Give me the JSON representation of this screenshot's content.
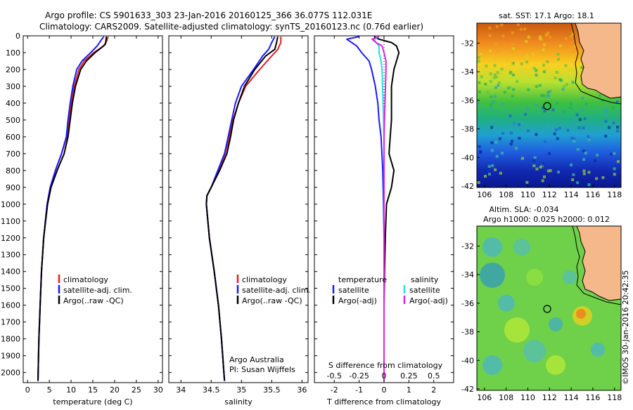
{
  "header": {
    "line1": "Argo profile: CS 5901633_303 23-Jan-2016 20160125_366 36.077S 112.031E",
    "line2": "Climatology: CARS2009. Satellite-adjusted climatology: synTS_20160123.nc (0.76d earlier)"
  },
  "colors": {
    "climatology": "#e02020",
    "satellite": "#1a1aff",
    "argo": "#000000",
    "sal_satellite": "#22e0e0",
    "sal_argo": "#e020e0",
    "land": "#f5b88a"
  },
  "depth_ticks": [
    "0",
    "100",
    "200",
    "300",
    "400",
    "500",
    "600",
    "700",
    "800",
    "900",
    "1000",
    "1100",
    "1200",
    "1300",
    "1400",
    "1500",
    "1600",
    "1700",
    "1800",
    "1900",
    "2000"
  ],
  "temperature_panel": {
    "xlabel": "temperature (deg C)",
    "xticks": [
      "0",
      "5",
      "10",
      "15",
      "20",
      "25",
      "30"
    ],
    "legend": [
      "climatology",
      "satellite-adj. clim.",
      "Argo(..raw -QC)"
    ]
  },
  "salinity_panel": {
    "xlabel": "salinity",
    "xticks": [
      "34",
      "34.5",
      "35",
      "35.5",
      "36"
    ],
    "legend": [
      "climatology",
      "satellite-adj. clim.",
      "Argo(..raw -QC)"
    ],
    "note1": "Argo Australia",
    "note2": "PI: Susan Wijffels"
  },
  "difference_panel": {
    "xlabel": "T difference from climatology",
    "toplabel": "S difference from climatology",
    "t_ticks": [
      "-2",
      "-1",
      "0",
      "1",
      "2"
    ],
    "s_ticks": [
      "-0.5",
      "-0.25",
      "0",
      "0.25",
      "0.5"
    ],
    "legend_temp_title": "temperature",
    "legend_sal_title": "salinity",
    "legend_temp": [
      "satellite",
      "Argo(-adj)"
    ],
    "legend_sal": [
      "satellite",
      "Argo(-adj)"
    ]
  },
  "sst_map": {
    "title": "sat. SST: 17.1  Argo: 18.1",
    "lat_ticks": [
      "-32",
      "-34",
      "-36",
      "-38",
      "-40",
      "-42"
    ],
    "lon_ticks": [
      "106",
      "108",
      "110",
      "112",
      "114",
      "116",
      "118"
    ]
  },
  "sla_map": {
    "title1": "Altim. SLA: -0.034",
    "title2": "Argo h1000: 0.025 h2000: 0.012",
    "lat_ticks": [
      "-32",
      "-34",
      "-36",
      "-38",
      "-40",
      "-42"
    ],
    "lon_ticks": [
      "106",
      "108",
      "110",
      "112",
      "114",
      "116",
      "118"
    ]
  },
  "credit": "©IMOS 30-Jan-2016 20:42:35",
  "chart_data": [
    {
      "type": "line",
      "name": "temperature profile",
      "xlabel": "temperature (deg C)",
      "ylabel": "",
      "xlim": [
        -1,
        31
      ],
      "ylim": [
        2060,
        0
      ],
      "series": [
        {
          "name": "climatology",
          "depth": [
            5,
            30,
            60,
            100,
            150,
            200,
            300,
            400,
            500,
            600,
            700,
            800,
            900,
            1000,
            1200,
            1400,
            1600,
            1800,
            2050
          ],
          "values": [
            18.5,
            18.2,
            17.5,
            15.2,
            13.0,
            11.8,
            10.7,
            10.0,
            9.5,
            9.0,
            7.8,
            6.4,
            5.2,
            4.5,
            3.7,
            3.2,
            2.9,
            2.6,
            2.4
          ]
        },
        {
          "name": "satellite-adj. clim.",
          "depth": [
            5,
            30,
            60,
            100,
            150,
            200,
            300,
            400,
            500,
            600,
            700,
            800,
            900,
            1000,
            1200,
            1400,
            1600,
            1800,
            2050
          ],
          "values": [
            17.5,
            16.8,
            16.0,
            14.5,
            12.5,
            11.3,
            10.4,
            9.8,
            9.3,
            8.9,
            7.8,
            6.4,
            5.2,
            4.5,
            3.7,
            3.2,
            2.9,
            2.6,
            2.4
          ]
        },
        {
          "name": "Argo(..raw -QC)",
          "depth": [
            5,
            30,
            50,
            80,
            100,
            150,
            200,
            300,
            400,
            500,
            600,
            700,
            800,
            900,
            1000,
            1200,
            1400,
            1600,
            1800,
            2050
          ],
          "values": [
            18.1,
            18.0,
            17.9,
            16.5,
            15.5,
            13.5,
            12.2,
            11.0,
            10.3,
            9.8,
            9.3,
            8.4,
            6.8,
            5.4,
            4.6,
            3.7,
            3.2,
            2.9,
            2.6,
            2.4
          ]
        }
      ]
    },
    {
      "type": "line",
      "name": "salinity profile",
      "xlabel": "salinity",
      "ylabel": "",
      "xlim": [
        33.8,
        36.1
      ],
      "ylim": [
        2060,
        0
      ],
      "series": [
        {
          "name": "climatology",
          "depth": [
            5,
            40,
            80,
            120,
            200,
            300,
            400,
            500,
            600,
            700,
            800,
            900,
            950,
            1000,
            1200,
            1400,
            1600,
            1800,
            2050
          ],
          "values": [
            35.65,
            35.65,
            35.6,
            35.5,
            35.3,
            35.07,
            34.95,
            34.86,
            34.8,
            34.73,
            34.62,
            34.5,
            34.43,
            34.42,
            34.47,
            34.55,
            34.62,
            34.67,
            34.72
          ]
        },
        {
          "name": "satellite-adj. clim.",
          "depth": [
            5,
            40,
            80,
            120,
            200,
            300,
            400,
            500,
            600,
            700,
            800,
            900,
            950,
            1000,
            1200,
            1400,
            1600,
            1800,
            2050
          ],
          "values": [
            35.55,
            35.5,
            35.45,
            35.35,
            35.2,
            35.0,
            34.9,
            34.84,
            34.78,
            34.72,
            34.61,
            34.5,
            34.43,
            34.42,
            34.47,
            34.55,
            34.62,
            34.67,
            34.72
          ]
        },
        {
          "name": "Argo(..raw -QC)",
          "depth": [
            5,
            40,
            80,
            120,
            200,
            300,
            400,
            500,
            600,
            700,
            800,
            900,
            950,
            1000,
            1200,
            1400,
            1600,
            1800,
            2050
          ],
          "values": [
            35.6,
            35.58,
            35.55,
            35.4,
            35.22,
            35.05,
            34.95,
            34.87,
            34.82,
            34.76,
            34.64,
            34.5,
            34.43,
            34.42,
            34.47,
            34.55,
            34.62,
            34.67,
            34.72
          ]
        }
      ]
    },
    {
      "type": "line",
      "name": "difference from climatology",
      "xlabel": "T difference from climatology",
      "x2label": "S difference from climatology",
      "xlim": [
        -2.8,
        2.8
      ],
      "x2lim": [
        -0.7,
        0.7
      ],
      "ylim": [
        2060,
        0
      ],
      "series": [
        {
          "name": "temperature satellite",
          "depth": [
            5,
            20,
            40,
            60,
            100,
            150,
            200,
            300,
            400,
            500,
            600,
            800,
            1000,
            1200,
            1400,
            1600,
            1800,
            2050
          ],
          "values": [
            -1.0,
            -1.5,
            -1.3,
            -1.1,
            -0.9,
            -0.6,
            -0.5,
            -0.35,
            -0.25,
            -0.2,
            -0.12,
            -0.05,
            -0.02,
            0,
            0,
            0,
            0,
            0
          ]
        },
        {
          "name": "temperature Argo(-adj)",
          "depth": [
            5,
            20,
            40,
            60,
            100,
            150,
            200,
            300,
            400,
            500,
            600,
            700,
            800,
            900,
            1000,
            1200,
            1400,
            1600,
            1800,
            2050
          ],
          "values": [
            -0.4,
            -0.2,
            0.3,
            0.5,
            0.6,
            0.5,
            0.4,
            0.3,
            0.3,
            0.3,
            0.25,
            0.2,
            0.4,
            0.3,
            0.1,
            0.05,
            0.02,
            0,
            0,
            0
          ]
        },
        {
          "name": "salinity satellite",
          "depth": [
            5,
            20,
            40,
            60,
            100,
            150,
            200,
            400,
            600,
            800,
            1000,
            1200,
            1400,
            1600,
            1800,
            2050
          ],
          "values": [
            -0.05,
            -0.1,
            -0.08,
            -0.05,
            -0.05,
            -0.03,
            -0.02,
            -0.01,
            0,
            0,
            0,
            0,
            0,
            0,
            0,
            0
          ]
        },
        {
          "name": "salinity Argo(-adj)",
          "depth": [
            5,
            20,
            40,
            60,
            100,
            150,
            200,
            400,
            600,
            800,
            1000,
            1200,
            1400,
            1600,
            1800,
            2050
          ],
          "values": [
            -0.05,
            -0.12,
            -0.08,
            -0.02,
            0,
            0.02,
            0.02,
            0.01,
            0,
            0,
            0,
            0,
            0,
            0,
            0,
            0
          ]
        }
      ]
    }
  ]
}
